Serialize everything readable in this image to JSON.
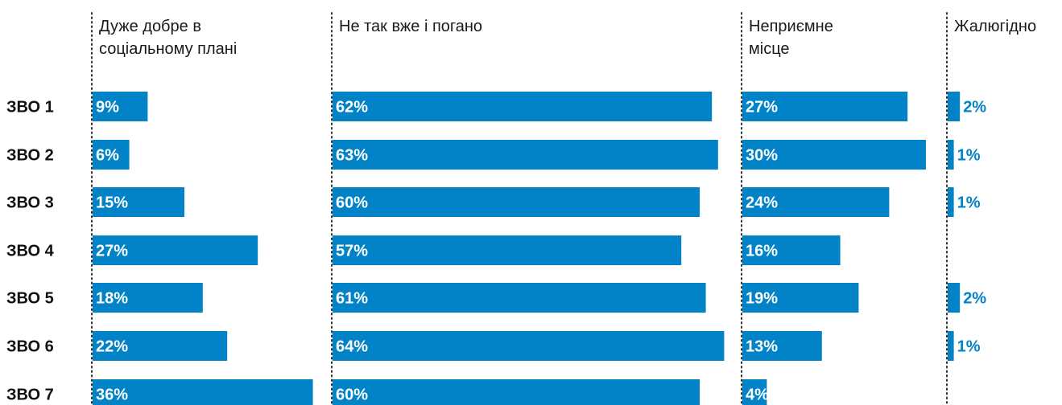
{
  "chart_data": {
    "type": "bar",
    "orientation": "horizontal",
    "layout": "small-multiples",
    "categories": [
      "ЗВО 1",
      "ЗВО 2",
      "ЗВО 3",
      "ЗВО 4",
      "ЗВО 5",
      "ЗВО 6",
      "ЗВО 7"
    ],
    "series": [
      {
        "name": "Дуже добре в соціальному плані",
        "header_lines": [
          "Дуже добре в",
          "соціальному плані"
        ],
        "values": [
          9,
          6,
          15,
          27,
          18,
          22,
          36
        ],
        "labels": [
          "9%",
          "6%",
          "15%",
          "27%",
          "18%",
          "22%",
          "36%"
        ]
      },
      {
        "name": "Не так вже і погано",
        "header_lines": [
          "Не так вже і погано"
        ],
        "values": [
          62,
          63,
          60,
          57,
          61,
          64,
          60
        ],
        "labels": [
          "62%",
          "63%",
          "60%",
          "57%",
          "61%",
          "64%",
          "60%"
        ]
      },
      {
        "name": "Неприємне місце",
        "header_lines": [
          "Неприємне",
          "місце"
        ],
        "values": [
          27,
          30,
          24,
          16,
          19,
          13,
          4
        ],
        "labels": [
          "27%",
          "30%",
          "24%",
          "16%",
          "19%",
          "13%",
          "4%"
        ]
      },
      {
        "name": "Жалюгідно",
        "header_lines": [
          "Жалюгідно"
        ],
        "values": [
          2,
          1,
          1,
          null,
          2,
          1,
          null
        ],
        "labels": [
          "2%",
          "1%",
          "1%",
          "",
          "2%",
          "1%",
          ""
        ]
      }
    ],
    "unit": "%",
    "colors": {
      "bar": "#0282c7",
      "label_inside": "#ffffff",
      "label_outside": "#0282c7"
    },
    "grid": false,
    "legend": "none"
  }
}
